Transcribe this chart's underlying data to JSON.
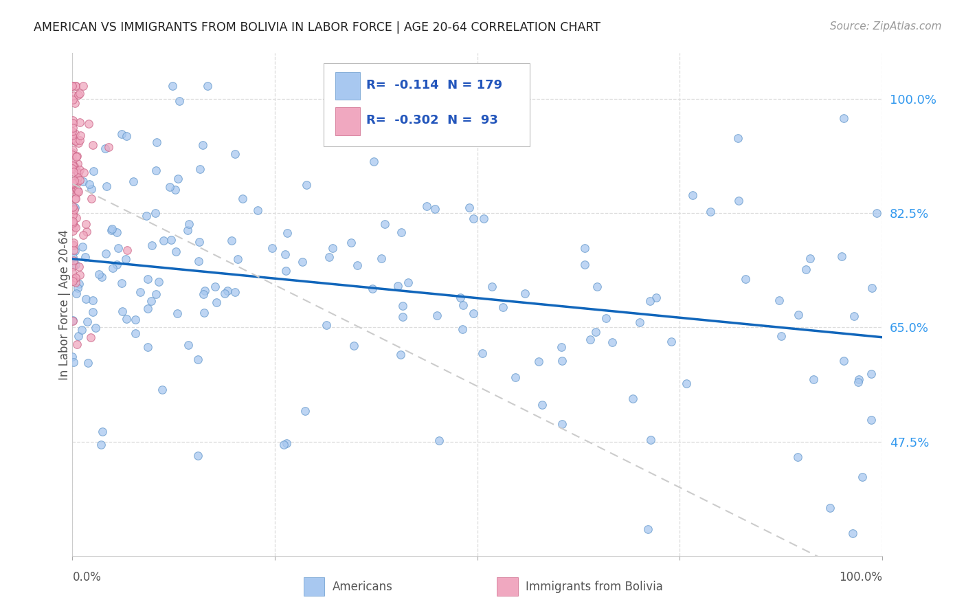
{
  "title": "AMERICAN VS IMMIGRANTS FROM BOLIVIA IN LABOR FORCE | AGE 20-64 CORRELATION CHART",
  "source": "Source: ZipAtlas.com",
  "ylabel": "In Labor Force | Age 20-64",
  "ytick_labels": [
    "100.0%",
    "82.5%",
    "65.0%",
    "47.5%"
  ],
  "ytick_values": [
    1.0,
    0.825,
    0.65,
    0.475
  ],
  "xlim": [
    0.0,
    1.0
  ],
  "ylim": [
    0.3,
    1.07
  ],
  "legend_label1": "Americans",
  "legend_label2": "Immigrants from Bolivia",
  "R1": "-0.114",
  "N1": "179",
  "R2": "-0.302",
  "N2": "93",
  "color_americans": "#a8c8f0",
  "color_bolivia": "#f0a8c0",
  "color_americans_edge": "#6699cc",
  "color_bolivia_edge": "#cc6688",
  "trend_color_americans": "#1166bb",
  "trend_color_bolivia": "#cccccc",
  "background_color": "#ffffff",
  "grid_color": "#dddddd",
  "scatter_alpha": 0.75,
  "marker_size": 70,
  "seed": 42
}
